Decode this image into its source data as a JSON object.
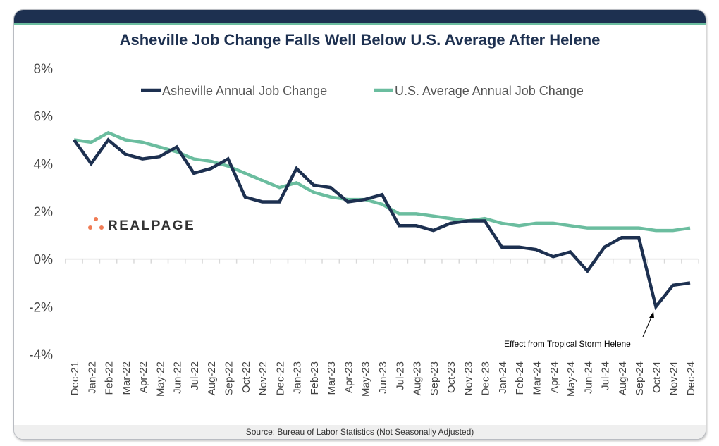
{
  "chart_data": {
    "type": "line",
    "title": "Asheville Job Change Falls Well Below U.S. Average After Helene",
    "source": "Source: Bureau of Labor Statistics (Not Seasonally Adjusted)",
    "xlabel": "",
    "ylabel": "",
    "ylim": [
      -4,
      8
    ],
    "yticks": [
      "8%",
      "6%",
      "4%",
      "2%",
      "0%",
      "-2%",
      "-4%"
    ],
    "ytick_values": [
      8,
      6,
      4,
      2,
      0,
      -2,
      -4
    ],
    "grid": false,
    "legend_position": "top",
    "categories": [
      "Dec-21",
      "Jan-22",
      "Feb-22",
      "Mar-22",
      "Apr-22",
      "May-22",
      "Jun-22",
      "Jul-22",
      "Aug-22",
      "Sep-22",
      "Oct-22",
      "Nov-22",
      "Dec-22",
      "Jan-23",
      "Feb-23",
      "Mar-23",
      "Apr-23",
      "May-23",
      "Jun-23",
      "Jul-23",
      "Aug-23",
      "Sep-23",
      "Oct-23",
      "Nov-23",
      "Dec-23",
      "Jan-24",
      "Feb-24",
      "Mar-24",
      "Apr-24",
      "May-24",
      "Jun-24",
      "Jul-24",
      "Aug-24",
      "Sep-24",
      "Oct-24",
      "Nov-24",
      "Dec-24"
    ],
    "series": [
      {
        "name": "Asheville Annual Job Change",
        "color": "#1d3050",
        "values": [
          5.0,
          4.0,
          5.0,
          4.4,
          4.2,
          4.3,
          4.7,
          3.6,
          3.8,
          4.2,
          2.6,
          2.4,
          2.4,
          3.8,
          3.1,
          3.0,
          2.4,
          2.5,
          2.7,
          1.4,
          1.4,
          1.2,
          1.5,
          1.6,
          1.6,
          0.5,
          0.5,
          0.4,
          0.1,
          0.3,
          -0.5,
          0.5,
          0.9,
          0.9,
          -2.0,
          -1.1,
          -1.0
        ]
      },
      {
        "name": "U.S. Average Annual Job Change",
        "color": "#6bbd9f",
        "values": [
          5.0,
          4.9,
          5.3,
          5.0,
          4.9,
          4.7,
          4.5,
          4.2,
          4.1,
          3.9,
          3.6,
          3.3,
          3.0,
          3.2,
          2.8,
          2.6,
          2.5,
          2.5,
          2.3,
          1.9,
          1.9,
          1.8,
          1.7,
          1.6,
          1.7,
          1.5,
          1.4,
          1.5,
          1.5,
          1.4,
          1.3,
          1.3,
          1.3,
          1.3,
          1.2,
          1.2,
          1.3
        ]
      }
    ],
    "annotations": [
      {
        "text": "Effect from Tropical Storm Helene",
        "x": "Oct-24",
        "y": -2.0
      }
    ]
  },
  "logo": {
    "text": "REALPAGE",
    "dot_color": "#f07c55"
  }
}
